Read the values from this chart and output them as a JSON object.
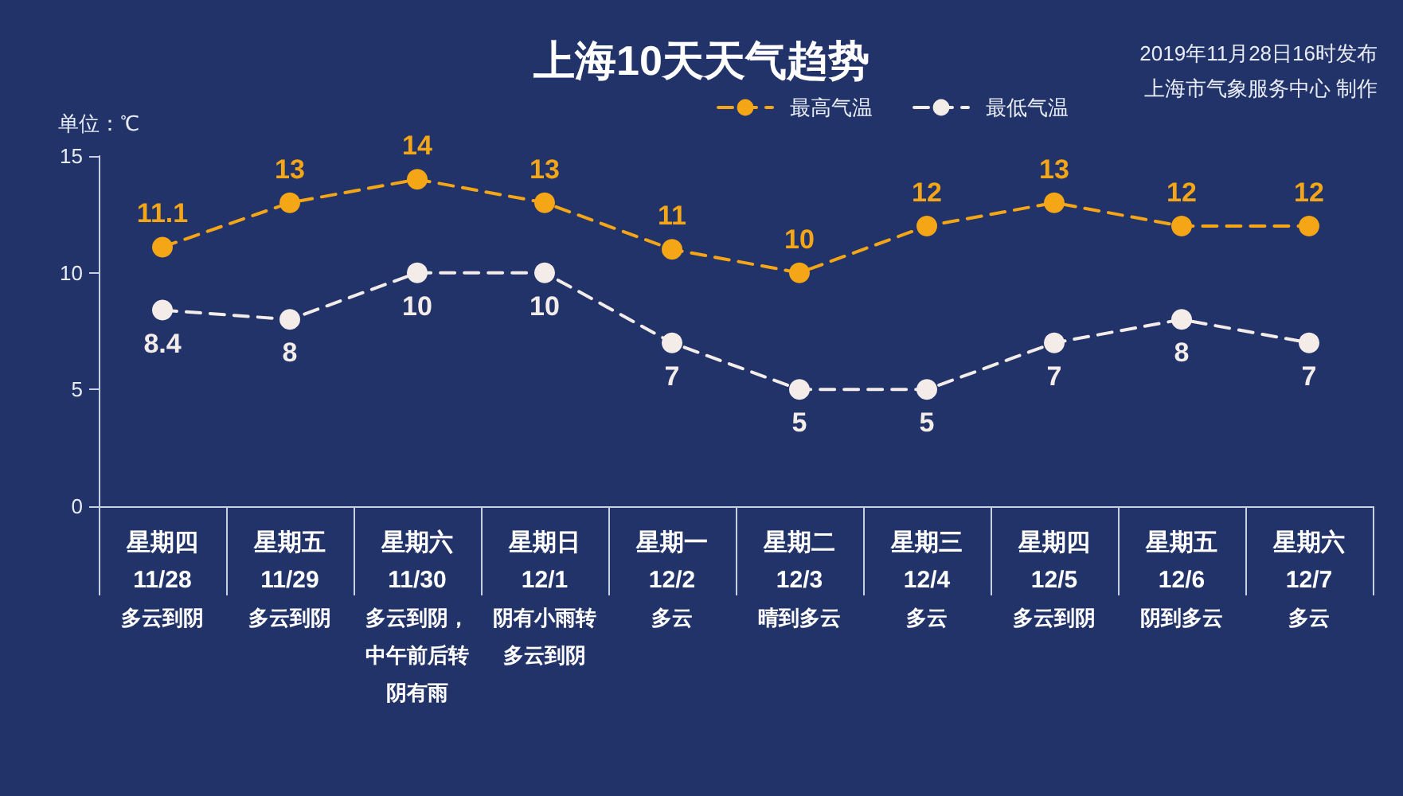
{
  "chart_data": {
    "type": "line",
    "title": "上海10天天气趋势",
    "ylabel": "单位：℃",
    "annotations": [
      "2019年11月28日16时发布",
      "上海市气象服务中心 制作"
    ],
    "categories": [
      "星期四\n11/28\n多云到阴",
      "星期五\n11/29\n多云到阴",
      "星期六\n11/30\n多云到阴，中午前后转阴有雨",
      "星期日\n12/1\n阴有小雨转多云到阴",
      "星期一\n12/2\n多云",
      "星期二\n12/3\n晴到多云",
      "星期三\n12/4\n多云",
      "星期四\n12/5\n多云到阴",
      "星期五\n12/6\n阴到多云",
      "星期六\n12/7\n多云"
    ],
    "series": [
      {
        "name": "最高气温",
        "color": "#f5a616",
        "values": [
          11.1,
          13,
          14,
          13,
          11,
          10,
          12,
          13,
          12,
          12
        ]
      },
      {
        "name": "最低气温",
        "color": "#f3ece8",
        "values": [
          8.4,
          8,
          10,
          10,
          7,
          5,
          5,
          7,
          8,
          7
        ]
      }
    ],
    "ylim": [
      0,
      15
    ],
    "yticks": [
      0,
      5,
      10,
      15
    ],
    "legend": "top right",
    "marker": "circle",
    "line_style": "dashed",
    "data_labels": true
  }
}
